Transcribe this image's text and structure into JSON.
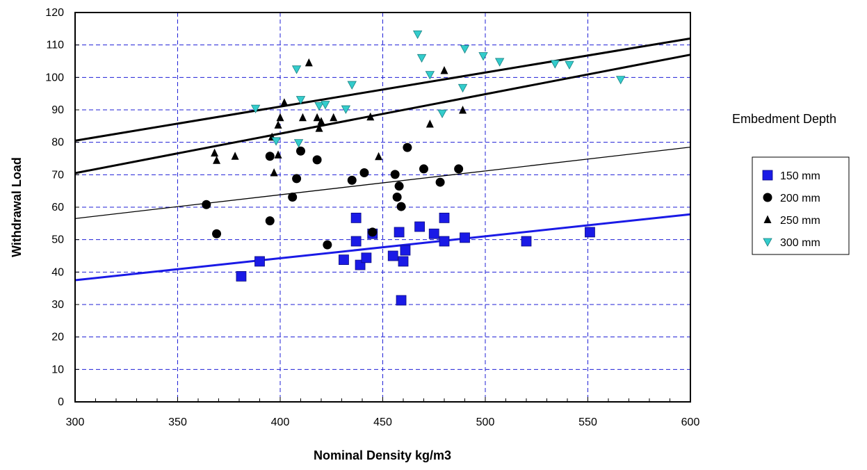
{
  "chart_data": {
    "type": "scatter",
    "title": "",
    "xlabel": "Nominal Density kg/m3",
    "ylabel": "Withdrawal Load",
    "xlim": [
      300,
      600
    ],
    "ylim": [
      0,
      120
    ],
    "x_ticks": [
      300,
      350,
      400,
      450,
      500,
      550,
      600
    ],
    "y_ticks": [
      0,
      10,
      20,
      30,
      40,
      50,
      60,
      70,
      80,
      90,
      100,
      110,
      120
    ],
    "grid": true,
    "legend_title": "Embedment Depth",
    "legend_position": "right",
    "series": [
      {
        "name": "150 mm",
        "marker": "square",
        "color": "#1a1ae6",
        "points": [
          [
            381,
            38.7
          ],
          [
            390,
            43.3
          ],
          [
            431,
            43.8
          ],
          [
            437,
            56.7
          ],
          [
            437,
            49.5
          ],
          [
            439,
            42.2
          ],
          [
            442,
            44.4
          ],
          [
            445,
            51.8
          ],
          [
            455,
            45.0
          ],
          [
            458,
            52.3
          ],
          [
            459,
            31.3
          ],
          [
            460,
            43.3
          ],
          [
            461,
            46.7
          ],
          [
            468,
            54.0
          ],
          [
            475,
            51.8
          ],
          [
            480,
            56.7
          ],
          [
            480,
            49.5
          ],
          [
            490,
            50.6
          ],
          [
            520,
            49.5
          ],
          [
            551,
            52.3
          ]
        ]
      },
      {
        "name": "200 mm",
        "marker": "circle",
        "color": "#000000",
        "points": [
          [
            364,
            60.8
          ],
          [
            369,
            51.8
          ],
          [
            395,
            75.7
          ],
          [
            395,
            55.8
          ],
          [
            406,
            63.1
          ],
          [
            408,
            68.8
          ],
          [
            410,
            77.3
          ],
          [
            418,
            74.6
          ],
          [
            423,
            48.4
          ],
          [
            435,
            68.3
          ],
          [
            441,
            70.6
          ],
          [
            445,
            52.3
          ],
          [
            456,
            70.1
          ],
          [
            457,
            63.1
          ],
          [
            458,
            66.5
          ],
          [
            459,
            60.2
          ],
          [
            462,
            78.4
          ],
          [
            470,
            71.8
          ],
          [
            478,
            67.7
          ],
          [
            487,
            71.8
          ]
        ]
      },
      {
        "name": "250 mm",
        "marker": "triangle-up",
        "color": "#000000",
        "points": [
          [
            368,
            76.7
          ],
          [
            369,
            74.4
          ],
          [
            378,
            75.7
          ],
          [
            396,
            81.6
          ],
          [
            397,
            70.6
          ],
          [
            399,
            76.1
          ],
          [
            399,
            85.3
          ],
          [
            400,
            87.6
          ],
          [
            402,
            92.2
          ],
          [
            411,
            87.6
          ],
          [
            414,
            104.5
          ],
          [
            418,
            87.6
          ],
          [
            419,
            84.3
          ],
          [
            420,
            86.4
          ],
          [
            426,
            87.6
          ],
          [
            444,
            87.8
          ],
          [
            448,
            75.6
          ],
          [
            473,
            85.6
          ],
          [
            480,
            102.1
          ],
          [
            489,
            89.9
          ]
        ]
      },
      {
        "name": "300 mm",
        "marker": "triangle-down",
        "color": "#33cccc",
        "points": [
          [
            388,
            90.4
          ],
          [
            398,
            80.4
          ],
          [
            408,
            102.5
          ],
          [
            409,
            79.8
          ],
          [
            410,
            93.1
          ],
          [
            419,
            91.2
          ],
          [
            422,
            91.6
          ],
          [
            432,
            90.2
          ],
          [
            435,
            97.7
          ],
          [
            467,
            113.3
          ],
          [
            469,
            106.0
          ],
          [
            473,
            100.8
          ],
          [
            479,
            88.9
          ],
          [
            489,
            96.8
          ],
          [
            490,
            108.8
          ],
          [
            499,
            106.6
          ],
          [
            507,
            104.8
          ],
          [
            534,
            104.2
          ],
          [
            541,
            103.9
          ],
          [
            566,
            99.3
          ]
        ]
      }
    ],
    "trend_lines": [
      {
        "x": [
          300,
          600
        ],
        "y": [
          80.5,
          112.0
        ],
        "color": "#000000",
        "weight": "thick"
      },
      {
        "x": [
          300,
          600
        ],
        "y": [
          70.5,
          107.0
        ],
        "color": "#000000",
        "weight": "thick"
      },
      {
        "x": [
          300,
          600
        ],
        "y": [
          56.5,
          78.5
        ],
        "color": "#000000",
        "weight": "thin"
      },
      {
        "x": [
          300,
          600
        ],
        "y": [
          37.5,
          57.8
        ],
        "color": "#1a1ae6",
        "weight": "thick"
      }
    ]
  }
}
